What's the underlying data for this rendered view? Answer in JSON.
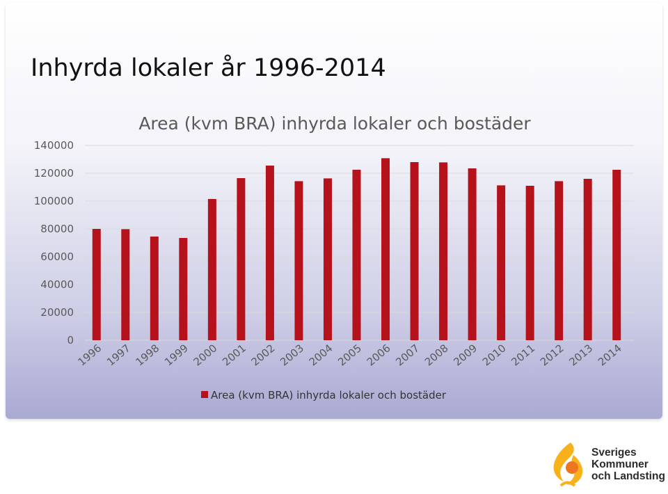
{
  "page": {
    "title": "Inhyrda lokaler år 1996-2014"
  },
  "colors": {
    "bar": "#b5121b",
    "grid": "#d9d9d9",
    "text": "#595959",
    "logo_yellow": "#f7b21b",
    "logo_orange": "#ee7623"
  },
  "logo": {
    "lines": [
      "Sveriges",
      "Kommuner",
      "och Landsting"
    ]
  },
  "chart_data": {
    "type": "bar",
    "title": "Area (kvm BRA) inhyrda lokaler och bostäder",
    "xlabel": "",
    "ylabel": "",
    "ylim": [
      0,
      140000
    ],
    "yticks": [
      0,
      20000,
      40000,
      60000,
      80000,
      100000,
      120000,
      140000
    ],
    "grid": true,
    "legend": "bottom",
    "categories": [
      "1996",
      "1997",
      "1998",
      "1999",
      "2000",
      "2001",
      "2002",
      "2003",
      "2004",
      "2005",
      "2006",
      "2007",
      "2008",
      "2009",
      "2010",
      "2011",
      "2012",
      "2013",
      "2014"
    ],
    "series": [
      {
        "name": "Area (kvm BRA) inhyrda lokaler och bostäder",
        "values": [
          80000,
          79800,
          74500,
          73500,
          101500,
          116500,
          125500,
          114300,
          116300,
          122500,
          130800,
          128000,
          127800,
          123500,
          111300,
          111000,
          114300,
          116000,
          122500
        ]
      }
    ]
  }
}
